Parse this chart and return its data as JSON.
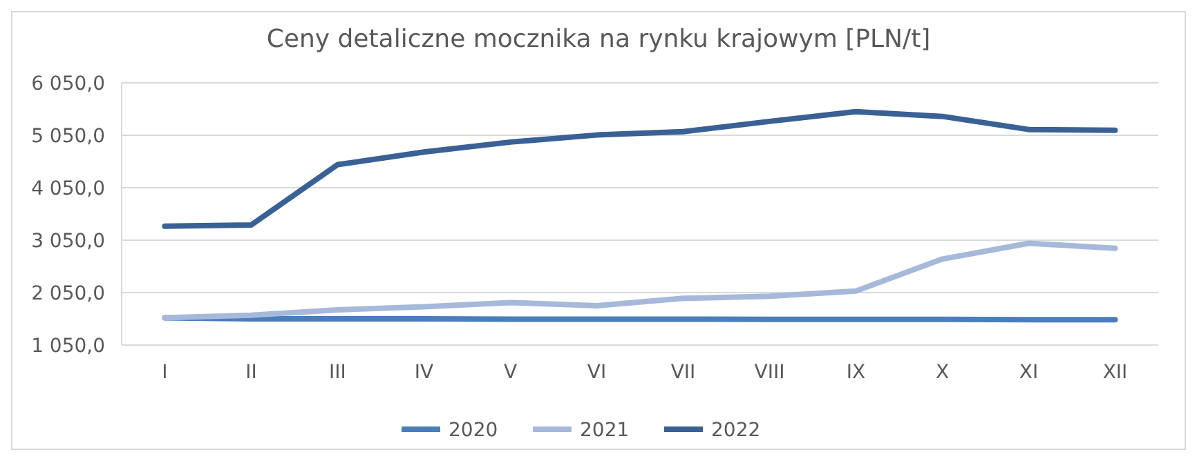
{
  "chart_data": {
    "type": "line",
    "title": "Ceny detaliczne mocznika na rynku krajowym [PLN/t]",
    "categories": [
      "I",
      "II",
      "III",
      "IV",
      "V",
      "VI",
      "VII",
      "VIII",
      "IX",
      "X",
      "XI",
      "XII"
    ],
    "series": [
      {
        "name": "2020",
        "color": "#4a7ebb",
        "values": [
          1570,
          1550,
          1550,
          1550,
          1545,
          1545,
          1545,
          1540,
          1540,
          1540,
          1535,
          1535
        ]
      },
      {
        "name": "2021",
        "color": "#a6b9db",
        "values": [
          1570,
          1620,
          1720,
          1780,
          1860,
          1800,
          1940,
          1980,
          2080,
          2690,
          2990,
          2895
        ]
      },
      {
        "name": "2022",
        "color": "#3a6196",
        "values": [
          3315,
          3340,
          4490,
          4730,
          4920,
          5055,
          5120,
          5315,
          5500,
          5410,
          5160,
          5145
        ]
      }
    ],
    "ylim": [
      1050,
      6050
    ],
    "yticks": [
      {
        "value": 1050,
        "label": "1 050,0"
      },
      {
        "value": 2050,
        "label": "2 050,0"
      },
      {
        "value": 3050,
        "label": "3 050,0"
      },
      {
        "value": 4050,
        "label": "4 050,0"
      },
      {
        "value": 5050,
        "label": "5 050,0"
      },
      {
        "value": 6050,
        "label": "6 050,0"
      }
    ],
    "grid": "y",
    "legend": "bottom",
    "marker": "none",
    "line_style": "solid"
  }
}
